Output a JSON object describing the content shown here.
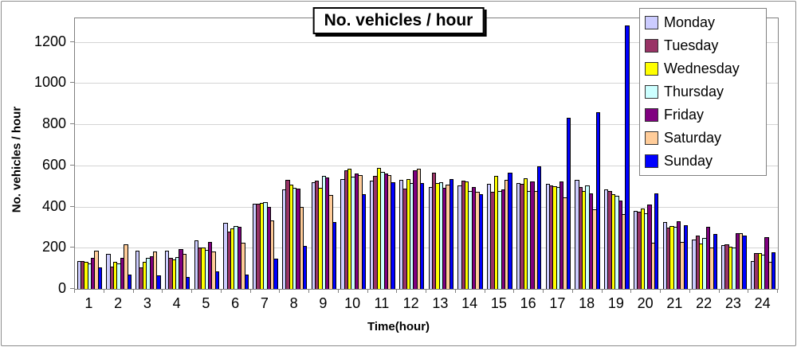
{
  "chart_data": {
    "type": "bar",
    "title": "No. vehicles / hour",
    "xlabel": "Time(hour)",
    "ylabel": "No. vehicles / hour",
    "categories": [
      1,
      2,
      3,
      4,
      5,
      6,
      7,
      8,
      9,
      10,
      11,
      12,
      13,
      14,
      15,
      16,
      17,
      18,
      19,
      20,
      21,
      22,
      23,
      24
    ],
    "y_ticks": [
      0,
      200,
      400,
      600,
      800,
      1000,
      1200
    ],
    "ylim": [
      0,
      1315
    ],
    "grid": true,
    "legend_position": "top-right",
    "axis_color": "#808080",
    "gridline_color": "#d4d4d4",
    "series": [
      {
        "name": "Monday",
        "color": "#ccccff",
        "values": [
          135,
          170,
          185,
          185,
          235,
          320,
          415,
          485,
          520,
          533,
          527,
          529,
          495,
          504,
          510,
          513,
          510,
          529,
          485,
          380,
          325,
          238,
          212,
          135
        ]
      },
      {
        "name": "Tuesday",
        "color": "#993366",
        "values": [
          135,
          110,
          105,
          150,
          200,
          280,
          413,
          530,
          527,
          575,
          551,
          487,
          565,
          527,
          472,
          510,
          504,
          497,
          474,
          376,
          298,
          260,
          215,
          173
        ]
      },
      {
        "name": "Wednesday",
        "color": "#ffff00",
        "values": [
          130,
          130,
          130,
          145,
          200,
          295,
          418,
          507,
          490,
          586,
          587,
          532,
          515,
          523,
          551,
          536,
          498,
          476,
          462,
          391,
          304,
          219,
          206,
          173
        ]
      },
      {
        "name": "Thursday",
        "color": "#ccffff",
        "values": [
          125,
          125,
          150,
          155,
          190,
          305,
          420,
          490,
          550,
          546,
          568,
          515,
          518,
          474,
          474,
          474,
          494,
          501,
          453,
          369,
          300,
          247,
          200,
          168
        ]
      },
      {
        "name": "Friday",
        "color": "#800080",
        "values": [
          150,
          150,
          160,
          195,
          230,
          300,
          397,
          488,
          543,
          562,
          559,
          577,
          490,
          495,
          485,
          523,
          523,
          465,
          431,
          410,
          328,
          301,
          272,
          250
        ]
      },
      {
        "name": "Saturday",
        "color": "#ffcc99",
        "values": [
          185,
          215,
          180,
          170,
          180,
          225,
          333,
          400,
          455,
          555,
          555,
          585,
          505,
          472,
          529,
          474,
          444,
          387,
          365,
          226,
          228,
          203,
          269,
          132
        ]
      },
      {
        "name": "Sunday",
        "color": "#0000ff",
        "values": [
          105,
          70,
          65,
          60,
          85,
          70,
          148,
          210,
          325,
          462,
          520,
          513,
          535,
          460,
          564,
          594,
          830,
          860,
          1280,
          465,
          308,
          267,
          261,
          177
        ]
      }
    ]
  }
}
